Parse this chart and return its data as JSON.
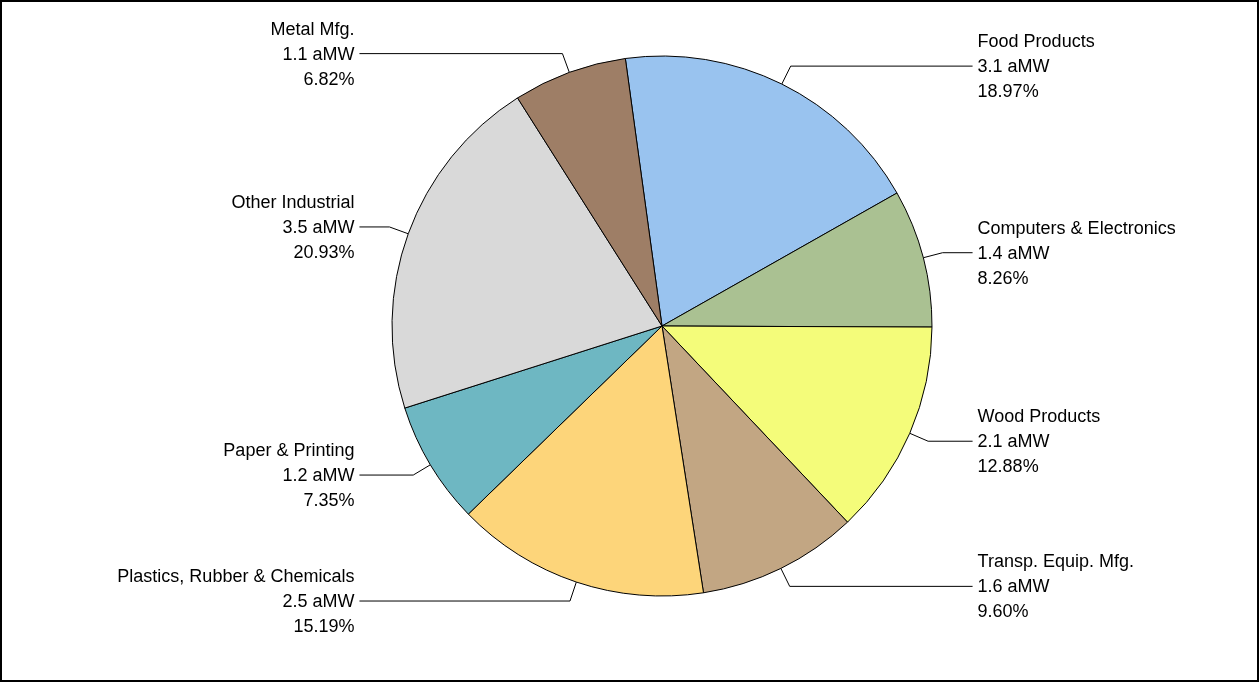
{
  "chart_data": {
    "type": "pie",
    "categories": [
      "Food Products",
      "Computers & Electronics",
      "Wood Products",
      "Transp. Equip. Mfg.",
      "Plastics, Rubber & Chemicals",
      "Paper & Printing",
      "Other Industrial",
      "Metal Mfg."
    ],
    "values": [
      18.97,
      8.26,
      12.88,
      9.6,
      15.19,
      7.35,
      20.93,
      6.82
    ],
    "value_labels": [
      "3.1 aMW\n18.97%",
      "1.4 aMW\n8.26%",
      "2.1 aMW\n12.88%",
      "1.6 aMW\n9.60%",
      "2.5 aMW\n15.19%",
      "1.2 aMW\n7.35%",
      "3.5 aMW\n20.93%",
      "1.1 aMW\n6.82%"
    ],
    "colors": [
      "#99c3ef",
      "#aac192",
      "#f4fc7a",
      "#c2a683",
      "#fdd57a",
      "#6eb7c2",
      "#d9d9d9",
      "#9e7e66"
    ],
    "legend": false
  }
}
